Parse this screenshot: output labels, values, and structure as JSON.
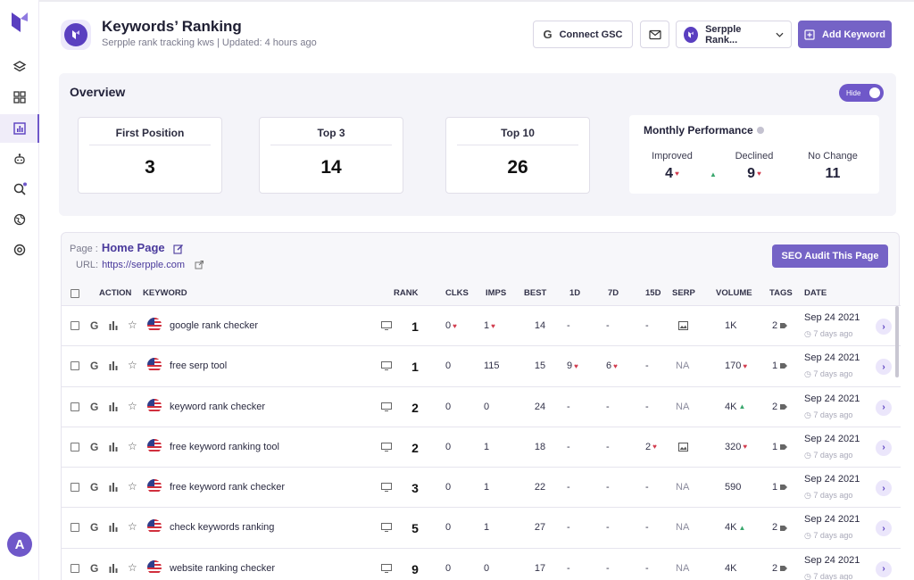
{
  "sidebar": {
    "avatar_letter": "A",
    "items": [
      "layers-icon",
      "grid-icon",
      "chart-icon",
      "bot-icon",
      "search-icon",
      "globe-icon",
      "settings-icon"
    ]
  },
  "header": {
    "title": "Keywords’ Ranking",
    "subtitle": "Serpple rank tracking kws | Updated: 4 hours ago",
    "connect_gsc_label": "Connect GSC",
    "project_label": "Serpple Rank...",
    "add_keyword_label": "Add Keyword"
  },
  "overview": {
    "title": "Overview",
    "toggle_label": "Hide",
    "stats": [
      {
        "label": "First Position",
        "value": "3"
      },
      {
        "label": "Top 3",
        "value": "14"
      },
      {
        "label": "Top 10",
        "value": "26"
      }
    ],
    "monthly": {
      "title": "Monthly Performance",
      "improved_label": "Improved",
      "improved_value": "4",
      "declined_label": "Declined",
      "declined_value": "9",
      "nochange_label": "No Change",
      "nochange_value": "11"
    }
  },
  "page_info": {
    "page_label": "Page :",
    "page_name": "Home Page",
    "url_label": "URL:",
    "url": "https://serpple.com",
    "audit_label": "SEO Audit This Page"
  },
  "table": {
    "headers": {
      "action": "ACTION",
      "keyword": "KEYWORD",
      "rank": "RANK",
      "clks": "CLKS",
      "imps": "IMPS",
      "best": "BEST",
      "d1": "1D",
      "d7": "7D",
      "d15": "15D",
      "serp": "SERP",
      "volume": "VOLUME",
      "tags": "TAGS",
      "date": "DATE"
    },
    "rows": [
      {
        "keyword": "google rank checker",
        "rank": "1",
        "clks": "0",
        "clks_dir": "down",
        "imps": "1",
        "imps_dir": "down",
        "best": "14",
        "d1": "-",
        "d1_dir": "",
        "d7": "-",
        "d7_dir": "",
        "d15": "-",
        "d15_dir": "",
        "serp": "img",
        "volume": "1K",
        "vol_dir": "",
        "tags": "2",
        "date": "Sep 24 2021",
        "ago": "7 days ago"
      },
      {
        "keyword": "free serp tool",
        "rank": "1",
        "clks": "0",
        "clks_dir": "",
        "imps": "115",
        "imps_dir": "",
        "best": "15",
        "d1": "9",
        "d1_dir": "down",
        "d7": "6",
        "d7_dir": "down",
        "d15": "-",
        "d15_dir": "",
        "serp": "NA",
        "volume": "170",
        "vol_dir": "down",
        "tags": "1",
        "date": "Sep 24 2021",
        "ago": "7 days ago"
      },
      {
        "keyword": "keyword rank checker",
        "rank": "2",
        "clks": "0",
        "clks_dir": "",
        "imps": "0",
        "imps_dir": "",
        "best": "24",
        "d1": "-",
        "d1_dir": "",
        "d7": "-",
        "d7_dir": "",
        "d15": "-",
        "d15_dir": "",
        "serp": "NA",
        "volume": "4K",
        "vol_dir": "up",
        "tags": "2",
        "date": "Sep 24 2021",
        "ago": "7 days ago"
      },
      {
        "keyword": "free keyword ranking tool",
        "rank": "2",
        "clks": "0",
        "clks_dir": "",
        "imps": "1",
        "imps_dir": "",
        "best": "18",
        "d1": "-",
        "d1_dir": "",
        "d7": "-",
        "d7_dir": "",
        "d15": "2",
        "d15_dir": "down",
        "serp": "img",
        "volume": "320",
        "vol_dir": "down",
        "tags": "1",
        "date": "Sep 24 2021",
        "ago": "7 days ago"
      },
      {
        "keyword": "free keyword rank checker",
        "rank": "3",
        "clks": "0",
        "clks_dir": "",
        "imps": "1",
        "imps_dir": "",
        "best": "22",
        "d1": "-",
        "d1_dir": "",
        "d7": "-",
        "d7_dir": "",
        "d15": "-",
        "d15_dir": "",
        "serp": "NA",
        "volume": "590",
        "vol_dir": "",
        "tags": "1",
        "date": "Sep 24 2021",
        "ago": "7 days ago"
      },
      {
        "keyword": "check keywords ranking",
        "rank": "5",
        "clks": "0",
        "clks_dir": "",
        "imps": "1",
        "imps_dir": "",
        "best": "27",
        "d1": "-",
        "d1_dir": "",
        "d7": "-",
        "d7_dir": "",
        "d15": "-",
        "d15_dir": "",
        "serp": "NA",
        "volume": "4K",
        "vol_dir": "up",
        "tags": "2",
        "date": "Sep 24 2021",
        "ago": "7 days ago"
      },
      {
        "keyword": "website ranking checker",
        "rank": "9",
        "clks": "0",
        "clks_dir": "",
        "imps": "0",
        "imps_dir": "",
        "best": "17",
        "d1": "-",
        "d1_dir": "",
        "d7": "-",
        "d7_dir": "",
        "d15": "-",
        "d15_dir": "",
        "serp": "NA",
        "volume": "4K",
        "vol_dir": "",
        "tags": "2",
        "date": "Sep 24 2021",
        "ago": "7 days ago"
      }
    ]
  },
  "colors": {
    "accent": "#7563c6",
    "brand": "#5a3fc0",
    "down": "#d23c4e",
    "up": "#3aa76d"
  }
}
